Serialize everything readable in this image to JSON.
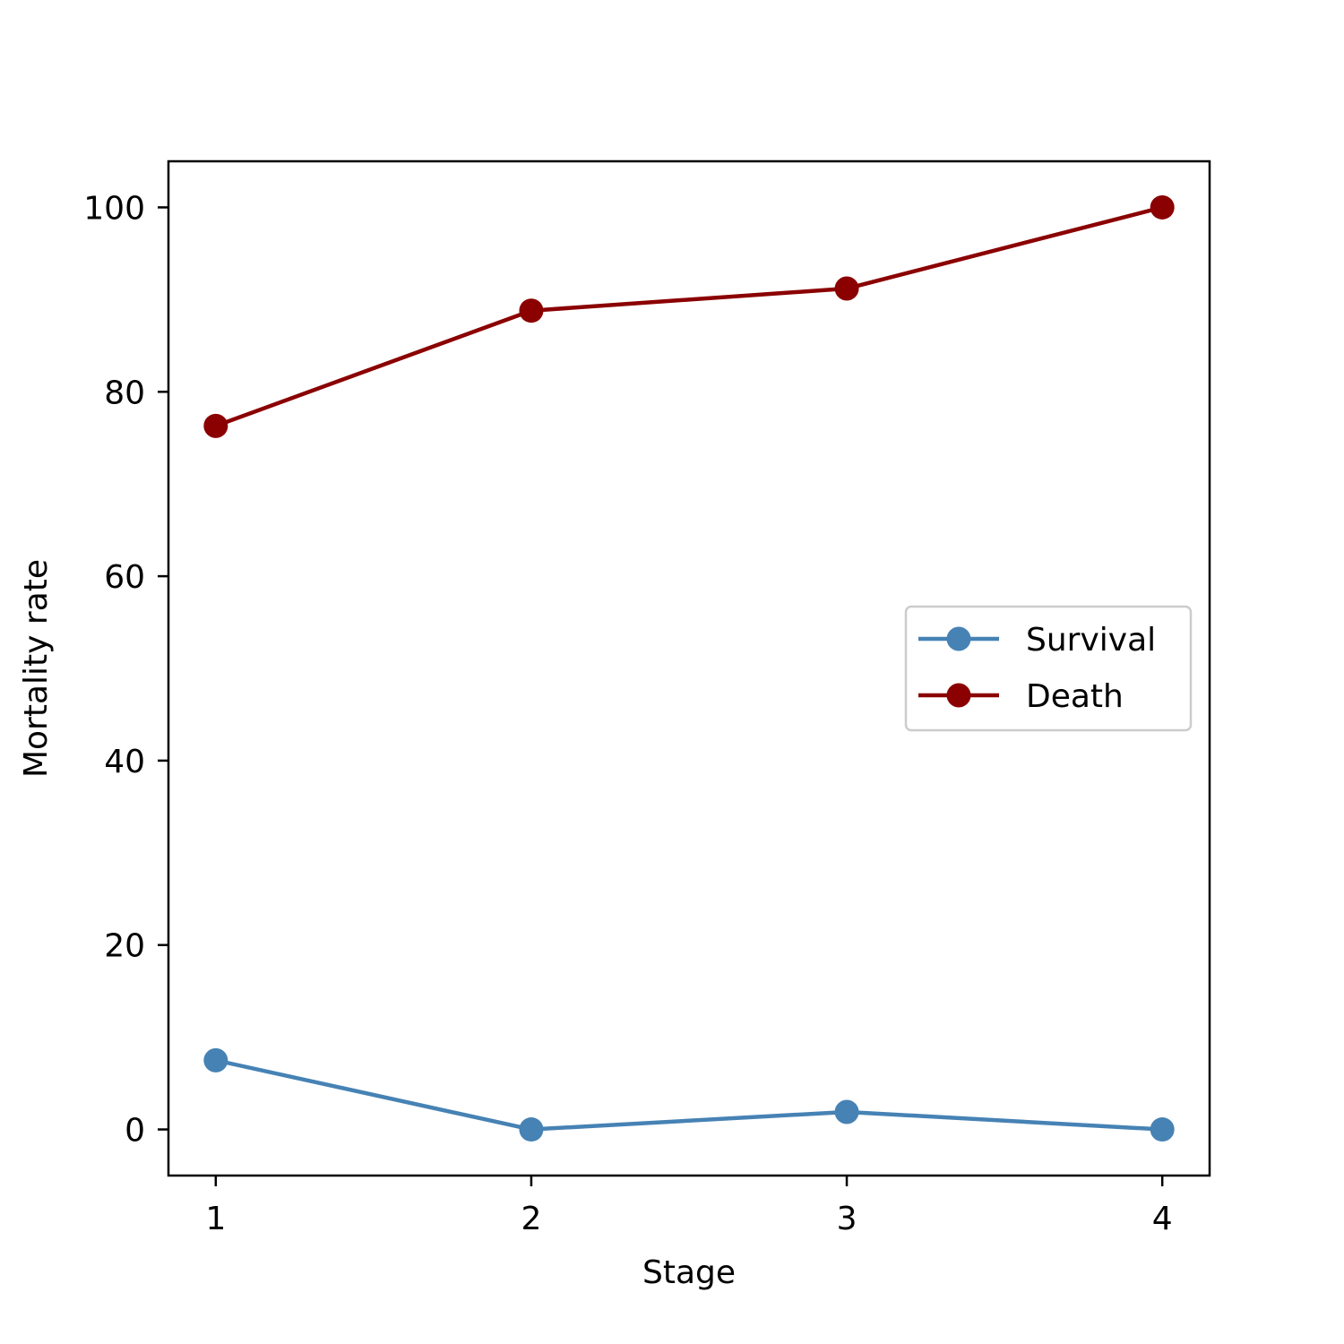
{
  "chart_data": {
    "type": "line",
    "title": "",
    "xlabel": "Stage",
    "ylabel": "Mortality rate",
    "x": [
      1,
      2,
      3,
      4
    ],
    "xticks": [
      1,
      2,
      3,
      4
    ],
    "yticks": [
      0,
      20,
      40,
      60,
      80,
      100
    ],
    "xlim": [
      0.85,
      4.15
    ],
    "ylim": [
      -5,
      105
    ],
    "grid": false,
    "legend_position": "center-right",
    "series": [
      {
        "name": "Survival",
        "color": "#4682b4",
        "marker": "circle",
        "values": [
          7.5,
          0,
          1.9,
          0
        ]
      },
      {
        "name": "Death",
        "color": "#8b0000",
        "marker": "circle",
        "values": [
          76.3,
          88.8,
          91.2,
          100
        ]
      }
    ]
  }
}
